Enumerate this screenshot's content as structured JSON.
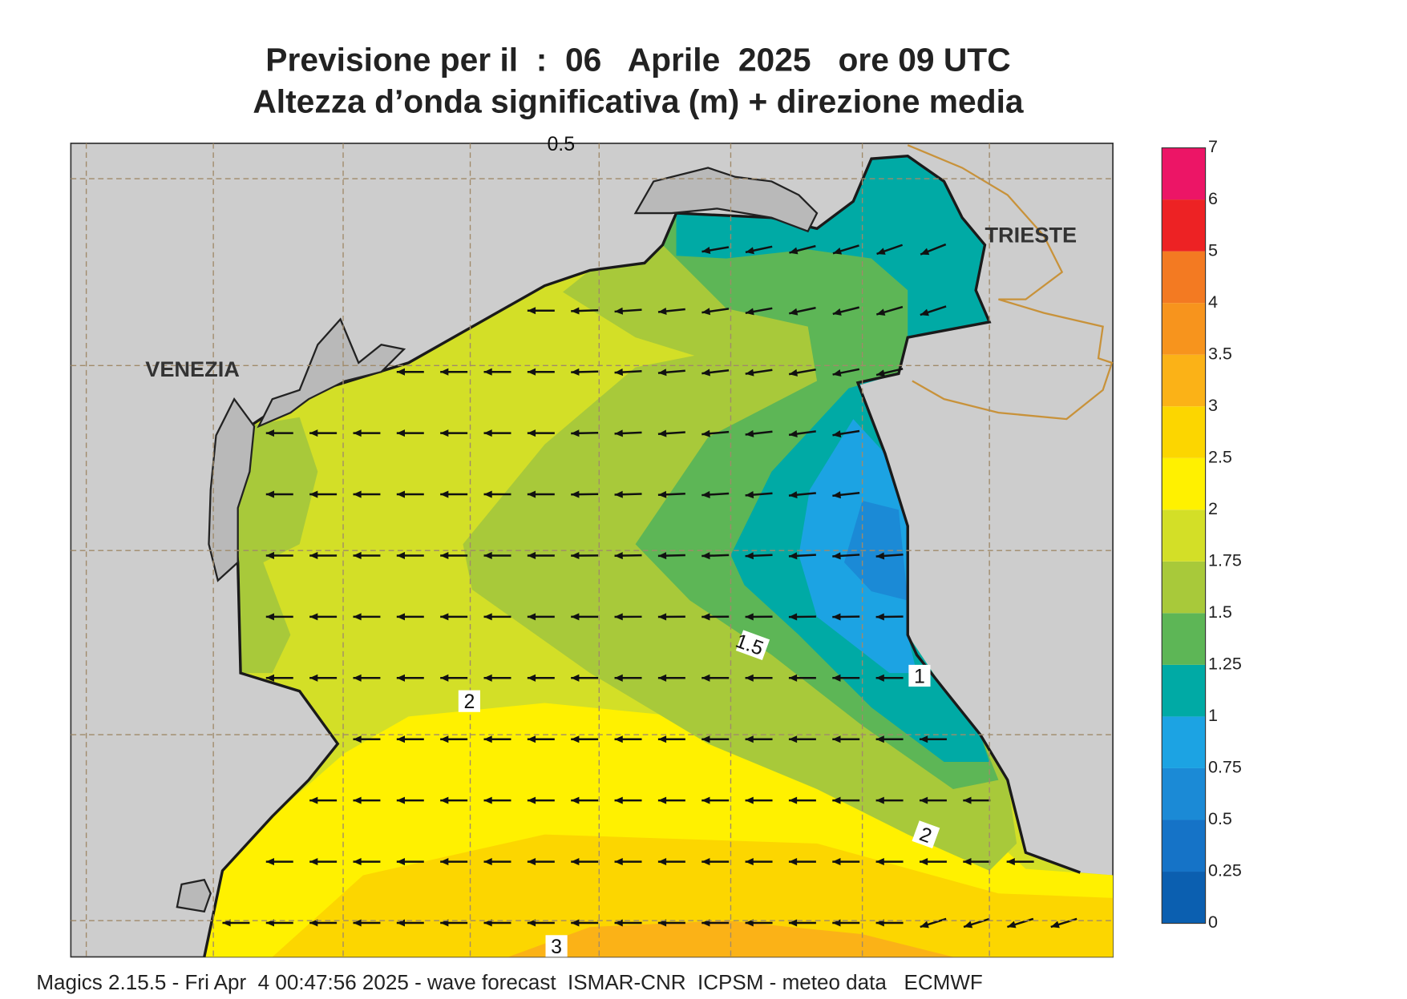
{
  "header": {
    "title": "Previsione per il  :  06   Aprile  2025   ore 09 UTC",
    "subtitle": "Altezza d’onda significativa (m) + direzione media"
  },
  "map": {
    "places": [
      "VENEZIA",
      "TRIESTE"
    ],
    "contour_labels": [
      1.5,
      2,
      1,
      2,
      3,
      0.5
    ]
  },
  "colorbar": {
    "levels": [
      0,
      0.25,
      0.5,
      0.75,
      1,
      1.25,
      1.5,
      1.75,
      2,
      2.5,
      3,
      3.5,
      4,
      5,
      6,
      7
    ],
    "colors": [
      "#0b5fb0",
      "#1573c7",
      "#1b8ad6",
      "#1ca3e3",
      "#00aaa5",
      "#5db656",
      "#a8c93a",
      "#d3df27",
      "#fff100",
      "#fcd600",
      "#fbb217",
      "#f7941d",
      "#f37a22",
      "#ed2224",
      "#ec1566"
    ]
  },
  "footer": "Magics 2.15.5 - Fri Apr  4 00:47:56 2025 - wave forecast  ISMAR-CNR  ICPSM - meteo data   ECMWF"
}
